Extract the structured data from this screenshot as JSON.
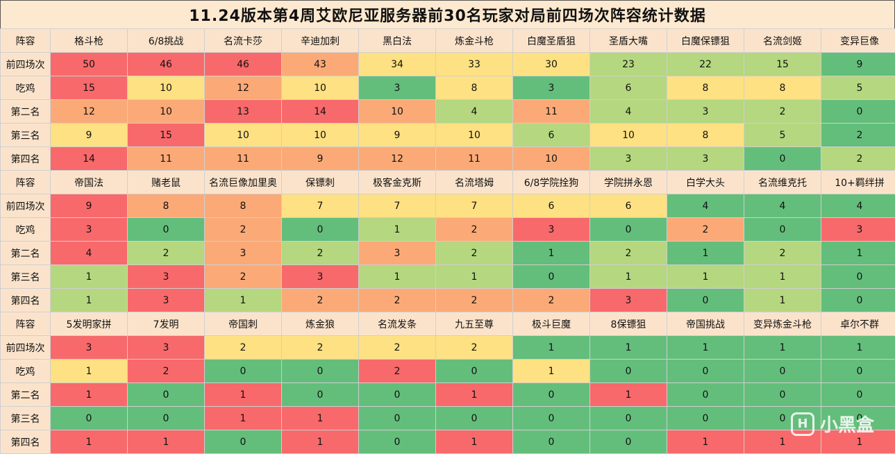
{
  "title": "11.24版本第4周艾欧尼亚服务器前30名玩家对局前四场次阵容统计数据",
  "watermark": {
    "logo": "H",
    "text": "小黑盒"
  },
  "colors": {
    "header_bg": "#fbe3cb",
    "scale": [
      "#f8696b",
      "#fbaa77",
      "#fee182",
      "#b5d77f",
      "#63be7b"
    ]
  },
  "sections": [
    {
      "header_label": "阵容",
      "comps": [
        "格斗枪",
        "6/8挑战",
        "名流卡莎",
        "辛迪加刺",
        "黑白法",
        "炼金斗枪",
        "白魔圣盾狙",
        "圣盾大嘴",
        "白魔保镖狙",
        "名流剑姬",
        "变异巨像"
      ],
      "rows": [
        {
          "label": "前四场次",
          "values": [
            50,
            46,
            46,
            43,
            34,
            33,
            30,
            23,
            22,
            15,
            9
          ]
        },
        {
          "label": "吃鸡",
          "values": [
            15,
            10,
            12,
            10,
            3,
            8,
            3,
            6,
            8,
            8,
            5
          ]
        },
        {
          "label": "第二名",
          "values": [
            12,
            10,
            13,
            14,
            10,
            4,
            11,
            4,
            3,
            2,
            0
          ]
        },
        {
          "label": "第三名",
          "values": [
            9,
            15,
            10,
            10,
            9,
            10,
            6,
            10,
            8,
            5,
            2
          ]
        },
        {
          "label": "第四名",
          "values": [
            14,
            11,
            11,
            9,
            12,
            11,
            10,
            3,
            3,
            0,
            2
          ]
        }
      ]
    },
    {
      "header_label": "阵容",
      "comps": [
        "帝国法",
        "赌老鼠",
        "名流巨像加里奥",
        "保镖刺",
        "极客金克斯",
        "名流塔姆",
        "6/8学院拴狗",
        "学院拼永恩",
        "白学大头",
        "名流维克托",
        "10+羁绊拼"
      ],
      "rows": [
        {
          "label": "前四场次",
          "values": [
            9,
            8,
            8,
            7,
            7,
            7,
            6,
            6,
            4,
            4,
            4
          ]
        },
        {
          "label": "吃鸡",
          "values": [
            3,
            0,
            2,
            0,
            1,
            2,
            3,
            0,
            2,
            0,
            3
          ]
        },
        {
          "label": "第二名",
          "values": [
            4,
            2,
            3,
            2,
            3,
            2,
            1,
            2,
            1,
            2,
            1
          ]
        },
        {
          "label": "第三名",
          "values": [
            1,
            3,
            2,
            3,
            1,
            1,
            0,
            1,
            1,
            1,
            0
          ]
        },
        {
          "label": "第四名",
          "values": [
            1,
            3,
            1,
            2,
            2,
            2,
            2,
            3,
            0,
            1,
            0
          ]
        }
      ]
    },
    {
      "header_label": "阵容",
      "comps": [
        "5发明家拼",
        "7发明",
        "帝国刺",
        "炼金狼",
        "名流发条",
        "九五至尊",
        "极斗巨魔",
        "8保镖狙",
        "帝国挑战",
        "变异炼金斗枪",
        "卓尔不群"
      ],
      "rows": [
        {
          "label": "前四场次",
          "values": [
            3,
            3,
            2,
            2,
            2,
            2,
            1,
            1,
            1,
            1,
            1
          ]
        },
        {
          "label": "吃鸡",
          "values": [
            1,
            2,
            0,
            0,
            2,
            0,
            1,
            0,
            0,
            0,
            0
          ]
        },
        {
          "label": "第二名",
          "values": [
            1,
            0,
            1,
            0,
            0,
            1,
            0,
            1,
            0,
            0,
            0
          ]
        },
        {
          "label": "第三名",
          "values": [
            0,
            0,
            1,
            1,
            0,
            0,
            0,
            0,
            0,
            0,
            0
          ]
        },
        {
          "label": "第四名",
          "values": [
            1,
            1,
            0,
            1,
            0,
            1,
            0,
            0,
            1,
            1,
            1
          ]
        }
      ]
    }
  ]
}
